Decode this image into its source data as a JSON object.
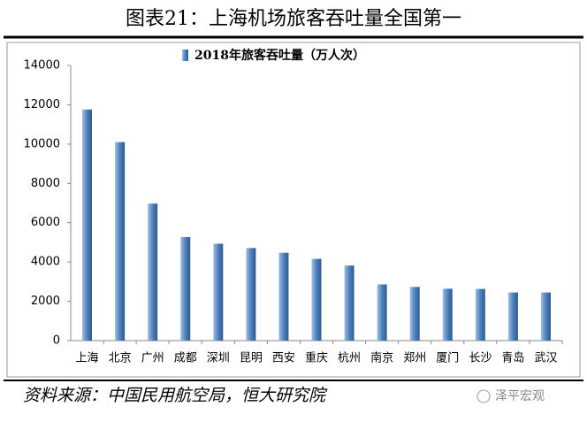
{
  "header": {
    "title": "图表21：上海机场旅客吞吐量全国第一"
  },
  "chart_data": {
    "type": "bar",
    "series": [
      {
        "name": "2018年旅客吞吐量（万人次）",
        "color": "#4f81bd",
        "values": [
          11760,
          10100,
          6970,
          5270,
          4930,
          4710,
          4470,
          4160,
          3820,
          2860,
          2730,
          2640,
          2630,
          2450,
          2450
        ]
      }
    ],
    "categories": [
      "上海",
      "北京",
      "广州",
      "成都",
      "深圳",
      "昆明",
      "西安",
      "重庆",
      "杭州",
      "南京",
      "郑州",
      "厦门",
      "长沙",
      "青岛",
      "武汉"
    ],
    "ylim": [
      0,
      14000
    ],
    "yticks": [
      0,
      2000,
      4000,
      6000,
      8000,
      10000,
      12000,
      14000
    ],
    "grid": false,
    "legend": "top"
  },
  "footer": {
    "source": "资料来源：中国民用航空局，恒大研究院",
    "watermark": "泽平宏观"
  }
}
